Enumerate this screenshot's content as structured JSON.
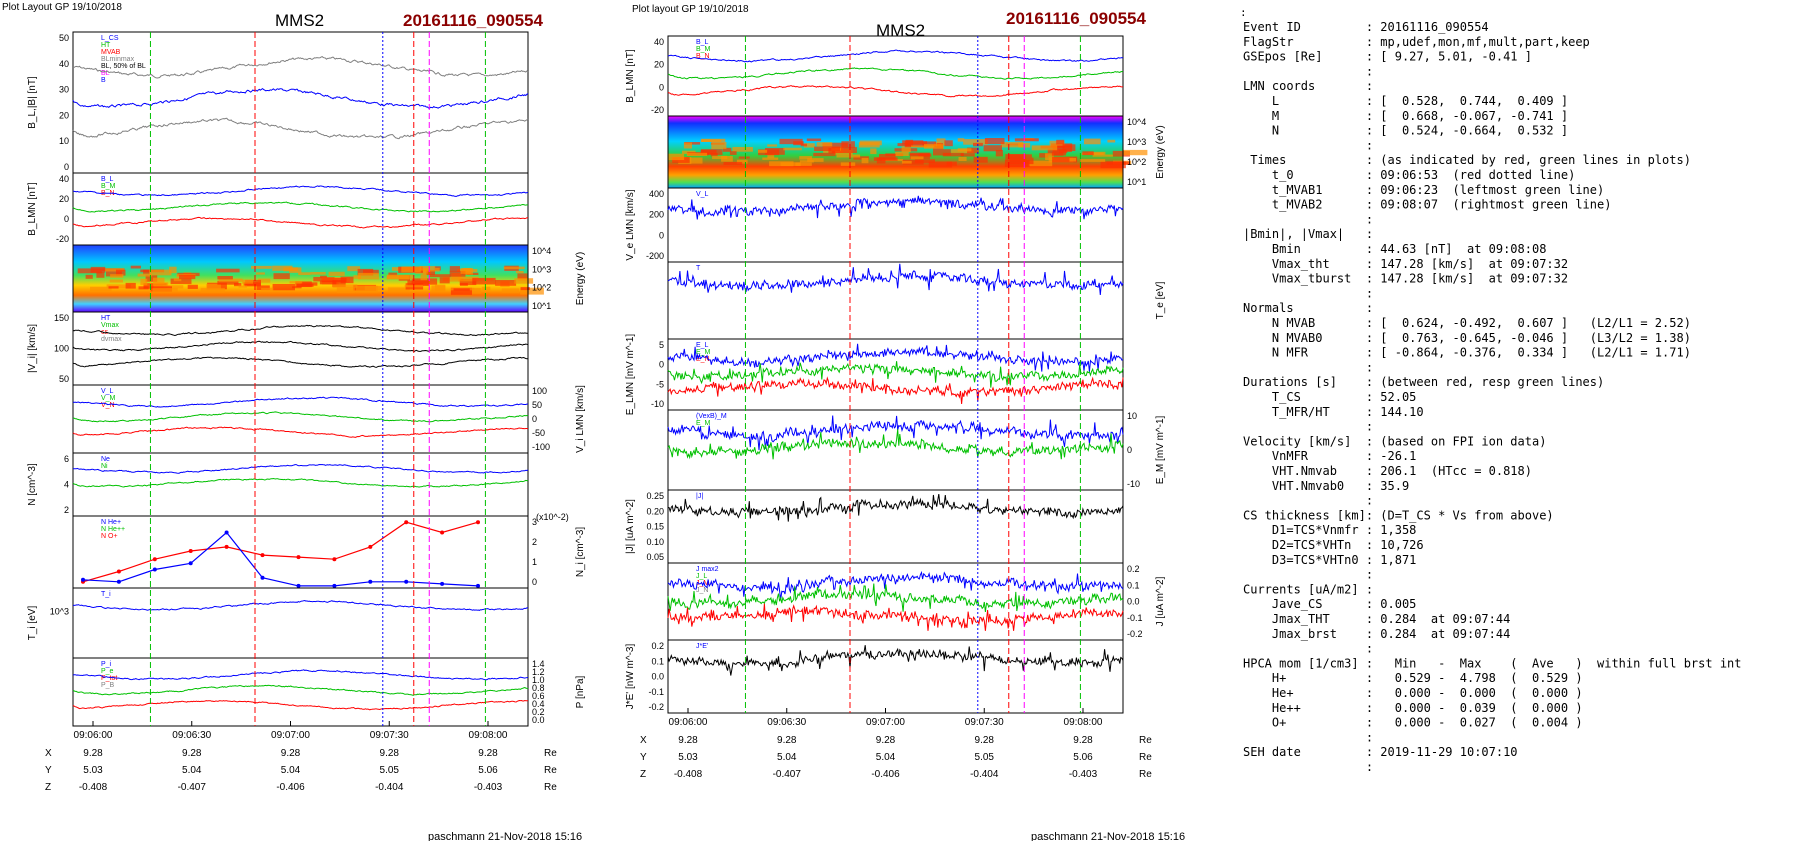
{
  "header_left": "Plot Layout GP 19/10/2018",
  "header_mid": "Plot layout GP 19/10/2018",
  "spacecraft": "MMS2",
  "event_title": "20161116_090554",
  "footer": "paschmann 21-Nov-2018 15:16",
  "colors": {
    "title_red": "#8b0000",
    "blue": "#0000ff",
    "red": "#ff0000",
    "green": "#00c000",
    "magenta": "#ff00ff",
    "gray": "#808080"
  },
  "time_ticks": [
    "09:06:00",
    "09:06:30",
    "09:07:00",
    "09:07:30",
    "09:08:00"
  ],
  "time_range_minutes": [
    0,
    2.35
  ],
  "markers": {
    "red_dashed": [
      0.94,
      1.76
    ],
    "green_dashed": [
      0.4,
      2.13
    ],
    "blue_dotted": 1.6,
    "magenta_dashed": 1.84
  },
  "orbit": {
    "labels": [
      "X",
      "Y",
      "Z"
    ],
    "unit": "Re",
    "X": [
      "9.28",
      "9.28",
      "9.28",
      "9.28",
      "9.28"
    ],
    "Y": [
      "5.03",
      "5.04",
      "5.04",
      "5.05",
      "5.06"
    ],
    "Z": [
      "-0.408",
      "-0.407",
      "-0.406",
      "-0.404",
      "-0.403"
    ]
  },
  "chart_data": [
    {
      "type": "line",
      "title": "",
      "panels": [
        {
          "ylabel": "B_L,|B| [nT]",
          "ylim": [
            0,
            50
          ],
          "ticks": [
            "50",
            "40",
            "30",
            "20",
            "10",
            "0"
          ],
          "legend": [
            "L_CS",
            "HT",
            "MVAB",
            "BLminmax",
            "BL, 50% of BL",
            "BL",
            "B"
          ]
        },
        {
          "ylabel": "B_LMN [nT]",
          "ylim": [
            -30,
            40
          ],
          "ticks": [
            "40",
            "20",
            "0",
            "-20"
          ],
          "legend": [
            "B_L",
            "B_M",
            "B_N"
          ]
        },
        {
          "ylabel": "Energy (eV)",
          "type": "heatmap",
          "ticks": [
            "10^4",
            "10^3",
            "10^2",
            "10^1"
          ]
        },
        {
          "ylabel": "|V_i| [km/s]",
          "ylim": [
            0,
            150
          ],
          "ticks": [
            "150",
            "100",
            "50"
          ],
          "legend": [
            "HT",
            "Vmax",
            "cs",
            "dvmax"
          ]
        },
        {
          "ylabel": "V_i LMN [km/s]",
          "ylim": [
            -100,
            100
          ],
          "ticks": [
            "100",
            "50",
            "0",
            "-50",
            "-100"
          ],
          "legend": [
            "V_L",
            "V_M",
            "V_N"
          ]
        },
        {
          "ylabel": "N [cm^-3]",
          "ylim": [
            1,
            7
          ],
          "ticks": [
            "6",
            "4",
            "2"
          ],
          "legend": [
            "Ne",
            "Ni"
          ]
        },
        {
          "ylabel": "N_i [cm^-3]",
          "unit_note": "(x10^-2)",
          "ylim": [
            0,
            3.5
          ],
          "ticks": [
            "3",
            "2",
            "1",
            "0"
          ],
          "legend": [
            "N He+",
            "N He++",
            "N O+"
          ],
          "series": [
            {
              "name": "N He++",
              "values": [
                0.3,
                0.8,
                1.4,
                1.8,
                2.0,
                1.6,
                1.5,
                1.4,
                2.0,
                3.2,
                2.7,
                3.2
              ]
            },
            {
              "name": "N O+",
              "values": [
                0.4,
                0.3,
                0.9,
                1.2,
                2.7,
                0.5,
                0.1,
                0.1,
                0.3,
                0.3,
                0.2,
                0.1
              ]
            }
          ]
        },
        {
          "ylabel": "T_i [eV]",
          "ticks": [
            "10^3"
          ],
          "legend": [
            "T_i"
          ]
        },
        {
          "ylabel": "P [nPa]",
          "ylim": [
            0,
            1.4
          ],
          "ticks": [
            "1.4",
            "1.2",
            "1.0",
            "0.8",
            "0.6",
            "0.4",
            "0.2",
            "0.0"
          ],
          "legend": [
            "P_i",
            "P_e",
            "P_tot",
            "P_B"
          ]
        }
      ]
    },
    {
      "type": "line",
      "title": "",
      "panels": [
        {
          "ylabel": "B_LMN [nT]",
          "ylim": [
            -30,
            40
          ],
          "ticks": [
            "40",
            "20",
            "0",
            "-20"
          ],
          "legend": [
            "B_L",
            "B_M",
            "B_N"
          ]
        },
        {
          "ylabel": "Energy (eV)",
          "type": "heatmap",
          "ticks": [
            "10^4",
            "10^3",
            "10^2",
            "10^1"
          ]
        },
        {
          "ylabel": "V_e LMN [km/s]",
          "ylim": [
            -400,
            500
          ],
          "ticks": [
            "400",
            "200",
            "0",
            "-200"
          ],
          "legend": [
            "V_L"
          ]
        },
        {
          "ylabel": "T_e [eV]",
          "legend": [
            "T"
          ]
        },
        {
          "ylabel": "E_LMN [mV m^-1]",
          "ylim": [
            -12,
            8
          ],
          "ticks": [
            "5",
            "0",
            "-5",
            "-10"
          ],
          "legend": [
            "E_L",
            "E_M",
            "E_N"
          ]
        },
        {
          "ylabel": "E_M [mV m^-1]",
          "ylim": [
            -15,
            15
          ],
          "ticks": [
            "10",
            "0",
            "-10"
          ],
          "legend": [
            "(VexB)_M",
            "E_M"
          ]
        },
        {
          "ylabel": "|J| [uA m^-2]",
          "ylim": [
            0,
            0.28
          ],
          "ticks": [
            "0.25",
            "0.20",
            "0.15",
            "0.10",
            "0.05"
          ],
          "legend": [
            "|J|"
          ]
        },
        {
          "ylabel": "J [uA m^-2]",
          "ylim": [
            -0.25,
            0.25
          ],
          "ticks": [
            "0.2",
            "0.1",
            "0.0",
            "-0.1",
            "-0.2"
          ],
          "legend": [
            "J max2",
            "J_L",
            "J_M",
            "J_N"
          ]
        },
        {
          "ylabel": "J*E' [nW m^-3]",
          "ylim": [
            -0.3,
            0.25
          ],
          "ticks": [
            "0.2",
            "0.1",
            "0.0",
            "-0.1",
            "-0.2"
          ],
          "legend": [
            "J*E'"
          ]
        }
      ]
    }
  ],
  "info_lines": [
    "Event ID         : 20161116_090554",
    "FlagStr          : mp,udef,mon,mf,mult,part,keep",
    "GSEpos [Re]      : [ 9.27, 5.01, -0.41 ]",
    "                 :",
    "LMN coords       :",
    "    L            : [  0.528,  0.744,  0.409 ]",
    "    M            : [  0.668, -0.067, -0.741 ]",
    "    N            : [  0.524, -0.664,  0.532 ]",
    "                 :",
    " Times           : (as indicated by red, green lines in plots)",
    "    t_0          : 09:06:53  (red dotted line)",
    "    t_MVAB1      : 09:06:23  (leftmost green line)",
    "    t_MVAB2      : 09:08:07  (rightmost green line)",
    "                 :",
    "|Bmin|, |Vmax|   :",
    "    Bmin         : 44.63 [nT]  at 09:08:08",
    "    Vmax_tht     : 147.28 [km/s]  at 09:07:32",
    "    Vmax_tburst  : 147.28 [km/s]  at 09:07:32",
    "                 :",
    "Normals          :",
    "    N MVAB       : [  0.624, -0.492,  0.607 ]   (L2/L1 = 2.52)",
    "    N MVAB0      : [  0.763, -0.645, -0.046 ]   (L3/L2 = 1.38)",
    "    N MFR        : [ -0.864, -0.376,  0.334 ]   (L2/L1 = 1.71)",
    "                 :",
    "Durations [s]    : (between red, resp green lines)",
    "    T_CS         : 52.05",
    "    T_MFR/HT     : 144.10",
    "                 :",
    "Velocity [km/s]  : (based on FPI ion data)",
    "    VnMFR        : -26.1",
    "    VHT.Nmvab    : 206.1  (HTcc = 0.818)",
    "    VHT.Nmvab0   : 35.9",
    "                 :",
    "CS thickness [km]: (D=T_CS * Vs from above)",
    "    D1=TCS*Vnmfr : 1,358",
    "    D2=TCS*VHTn  : 10,726",
    "    D3=TCS*VHTn0 : 1,871",
    "                 :",
    "Currents [uA/m2] :",
    "    Jave_CS      : 0.005",
    "    Jmax_THT     : 0.284  at 09:07:44",
    "    Jmax_brst    : 0.284  at 09:07:44",
    "                 :",
    "HPCA mom [1/cm3] :   Min   -  Max    (  Ave   )  within full brst int",
    "    H+           :   0.529 -  4.798  (  0.529 )",
    "    He+          :   0.000 -  0.000  (  0.000 )",
    "    He++         :   0.000 -  0.039  (  0.000 )",
    "    O+           :   0.000 -  0.027  (  0.004 )",
    "                 :",
    "SEH date         : 2019-11-29 10:07:10",
    "                 :"
  ]
}
